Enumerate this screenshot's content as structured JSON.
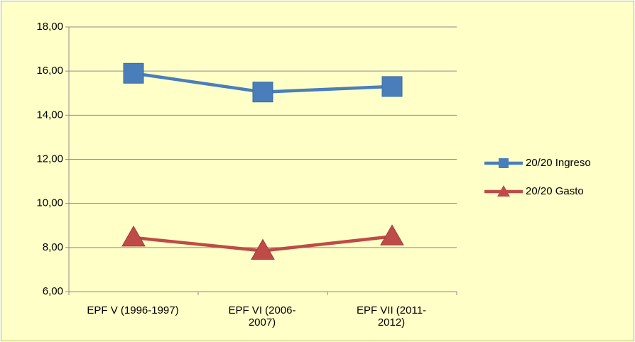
{
  "chart_data": {
    "type": "line",
    "categories": [
      "EPF V (1996-1997)",
      "EPF VI (2006-\n2007)",
      "EPF VII (2011-\n2012)"
    ],
    "series": [
      {
        "name": "20/20 Ingreso",
        "color": "#4a7ebb",
        "marker": "square",
        "values": [
          15.9,
          15.05,
          15.3
        ]
      },
      {
        "name": "20/20 Gasto",
        "color": "#be4b48",
        "marker": "triangle",
        "values": [
          8.45,
          7.85,
          8.5
        ]
      }
    ],
    "ylim": [
      6,
      18
    ],
    "yticks": [
      {
        "value": 6,
        "label": "6,00"
      },
      {
        "value": 8,
        "label": "8,00"
      },
      {
        "value": 10,
        "label": "10,00"
      },
      {
        "value": 12,
        "label": "12,00"
      },
      {
        "value": 14,
        "label": "14,00"
      },
      {
        "value": 16,
        "label": "16,00"
      },
      {
        "value": 18,
        "label": "18,00"
      }
    ],
    "grid": true,
    "legend": "right"
  }
}
